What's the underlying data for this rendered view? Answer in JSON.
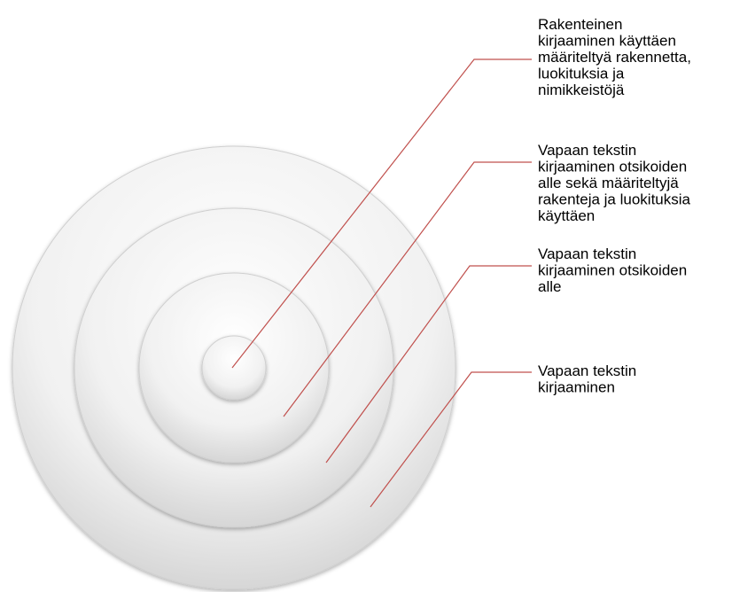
{
  "nodes": [
    {
      "lines": [
        "Rakenteinen",
        "kirjaaminen käyttäen",
        "määriteltyä rakennetta,",
        "luokituksia ja",
        "nimikkeistöjä"
      ]
    },
    {
      "lines": [
        "Vapaan tekstin",
        "kirjaaminen otsikoiden",
        "alle sekä määriteltyjä",
        "rakenteja ja luokituksia",
        "käyttäen"
      ]
    },
    {
      "lines": [
        "Vapaan tekstin",
        "kirjaaminen otsikoiden",
        "alle"
      ]
    },
    {
      "lines": [
        "Vapaan tekstin",
        "kirjaaminen"
      ]
    }
  ]
}
